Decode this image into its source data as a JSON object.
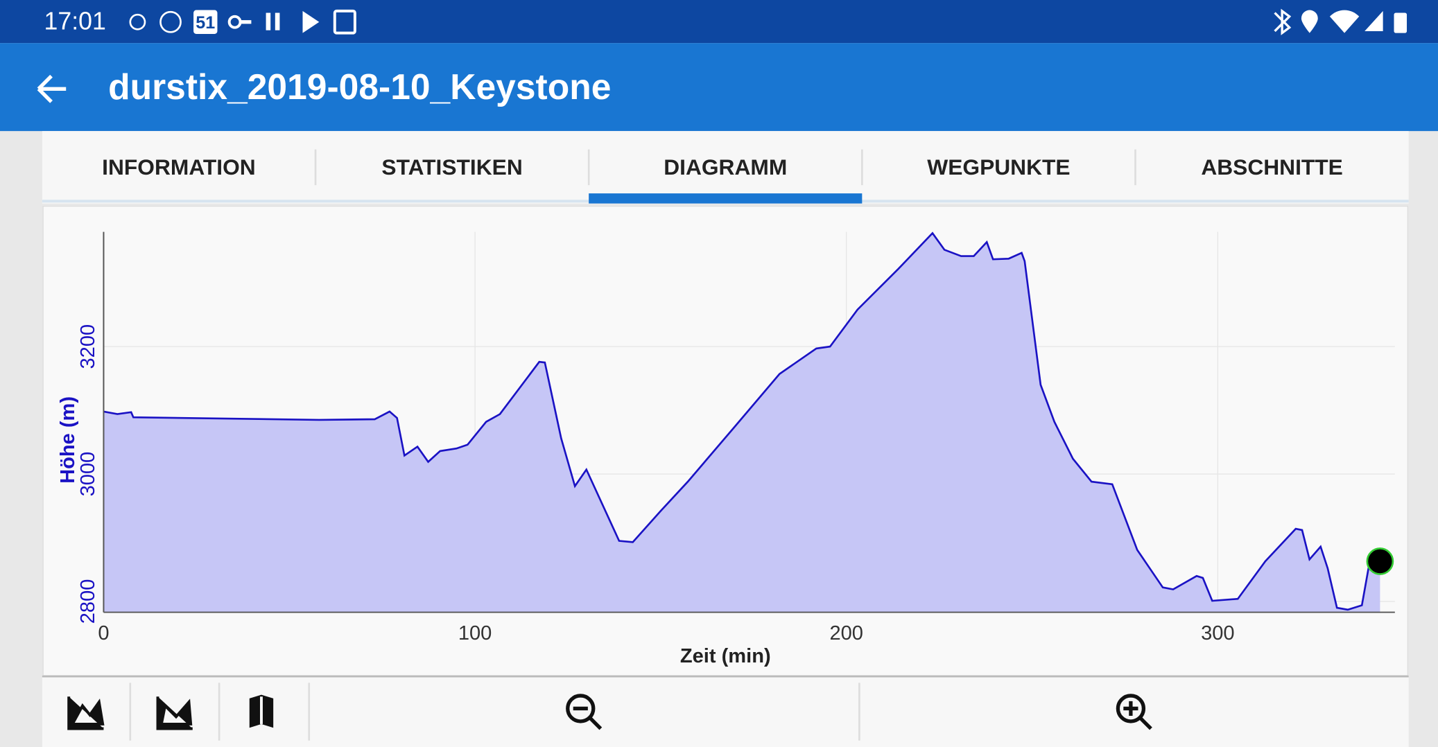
{
  "status_bar": {
    "time": "17:01",
    "calendar_day": "51"
  },
  "app_bar": {
    "title": "durstix_2019-08-10_Keystone"
  },
  "tabs": {
    "items": [
      "INFORMATION",
      "STATISTIKEN",
      "DIAGRAMM",
      "WEGPUNKTE",
      "ABSCHNITTE"
    ],
    "selected": 2
  },
  "chart_data": {
    "type": "area",
    "x_label": "Zeit (min)",
    "y_label": "Höhe (m)",
    "x": [
      0,
      3.7,
      7.4,
      8,
      58,
      73,
      77,
      79,
      81,
      84.5,
      87.4,
      90.6,
      95,
      98,
      103,
      106.7,
      117.3,
      118.8,
      123.2,
      126.9,
      130,
      138.8,
      142.5,
      150,
      157.3,
      169.6,
      182,
      191.9,
      195.6,
      203,
      214,
      223.2,
      226.4,
      230.9,
      234.3,
      237.8,
      239.5,
      243.7,
      247.2,
      248,
      252.3,
      256,
      261,
      266,
      271.6,
      278.3,
      285.2,
      288,
      294.3,
      296,
      298.5,
      305.4,
      312.8,
      321,
      322.7,
      324.7,
      327.7,
      329.6,
      332.1,
      335,
      338.8,
      340.7,
      343.7
    ],
    "values": [
      3098,
      3094,
      3097,
      3089,
      3085,
      3086,
      3098,
      3088,
      3029,
      3043,
      3019,
      3036,
      3040,
      3046,
      3082,
      3094,
      3176,
      3175,
      3056,
      2981,
      3007,
      2895,
      2893,
      2942,
      2988,
      3072,
      3157,
      3197,
      3200,
      3258,
      3322,
      3378,
      3352,
      3342,
      3342,
      3364,
      3337,
      3338,
      3347,
      3334,
      3140,
      3082,
      3024,
      2988,
      2984,
      2881,
      2822,
      2819,
      2840,
      2837,
      2801,
      2804,
      2863,
      2914,
      2912,
      2866,
      2886,
      2852,
      2790,
      2787,
      2794,
      2856,
      2863
    ],
    "color": "#c6c6f6",
    "line_color": "#1a12c4",
    "label_color": "#1a12c4",
    "xlim": [
      0,
      347.7
    ],
    "ylim": [
      2783,
      3380
    ],
    "xticks": [
      0,
      100,
      200,
      300
    ],
    "yticks": [
      2800,
      3000,
      3200
    ],
    "grid": true
  }
}
